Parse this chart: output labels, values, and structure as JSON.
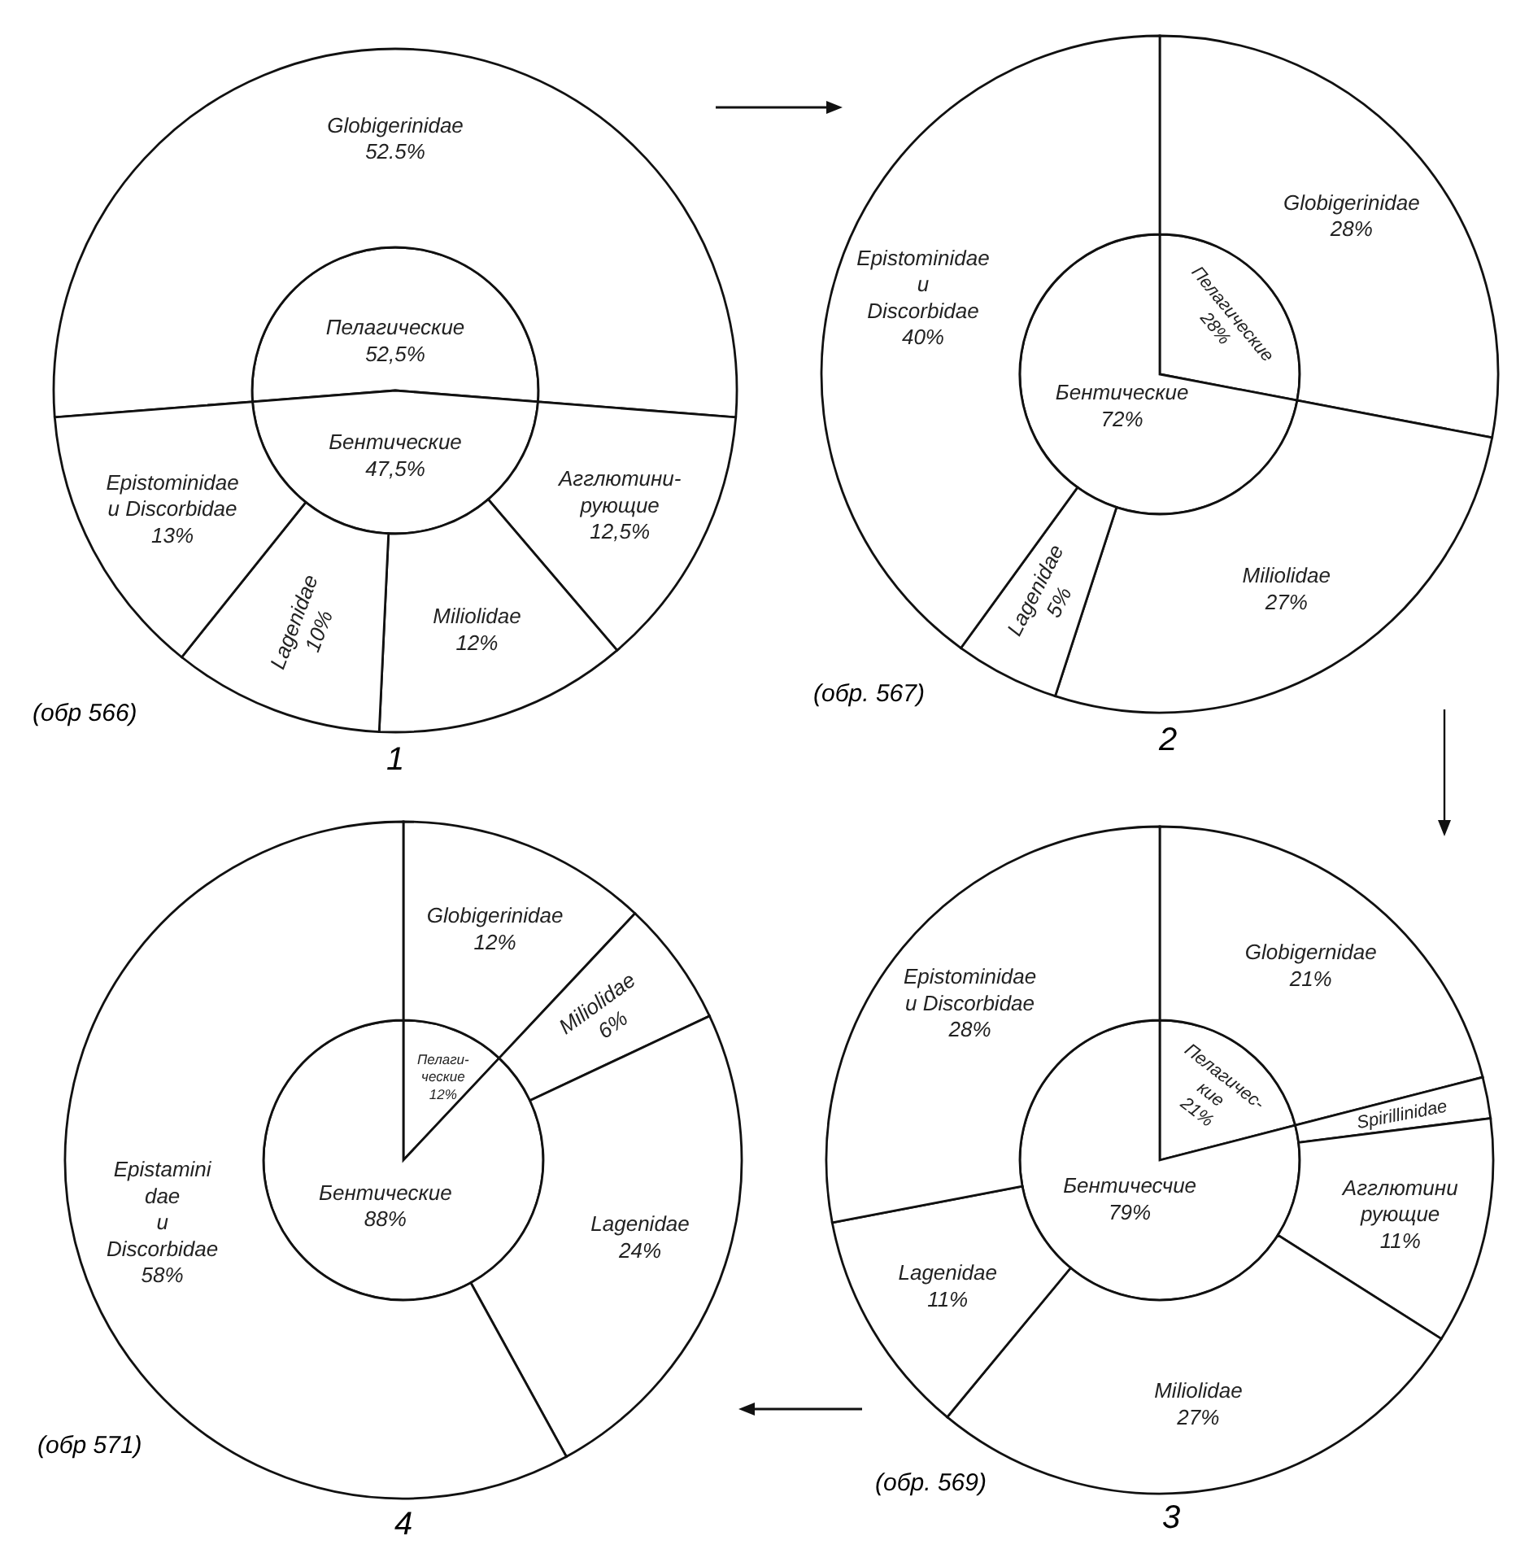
{
  "chart_data": [
    {
      "type": "pie",
      "categories": [
        "Пелагические",
        "Бентические"
      ],
      "values": [
        52.5,
        47.5
      ],
      "value_labels": [
        "52,5%",
        "47,5%"
      ],
      "colors": [
        "#ffffff",
        "#ffffff"
      ]
    },
    {
      "type": "donut",
      "title": "1",
      "subtitle": "(обр 566)",
      "categories": [
        "Globigerinidae",
        "Агглютини-\nрующие",
        "Miliolidae",
        "Lagenidae",
        "Epistominidae\nи Discorbidae"
      ],
      "values": [
        52.5,
        12.5,
        12,
        10,
        13
      ],
      "value_labels": [
        "52.5%",
        "12,5%",
        "12%",
        "10%",
        "13%"
      ],
      "colors": [
        "#ffffff",
        "#ffffff",
        "#ffffff",
        "#ffffff",
        "#ffffff"
      ]
    },
    {
      "type": "pie",
      "categories": [
        "Пелагические",
        "Бентические"
      ],
      "values": [
        28,
        72
      ],
      "value_labels": [
        "28%",
        "72%"
      ],
      "colors": [
        "#ffffff",
        "#ffffff"
      ]
    },
    {
      "type": "donut",
      "title": "2",
      "subtitle": "(обр. 567)",
      "categories": [
        "Globigerinidae",
        "Miliolidae",
        "Lagenidae",
        "Epistominidae\nи\nDiscorbidae"
      ],
      "values": [
        28,
        27,
        5,
        40
      ],
      "value_labels": [
        "28%",
        "27%",
        "5%",
        "40%"
      ],
      "colors": [
        "#ffffff",
        "#ffffff",
        "#ffffff",
        "#ffffff"
      ]
    },
    {
      "type": "pie",
      "categories": [
        "Пелаги-\nческие",
        "Бентические"
      ],
      "values": [
        12,
        88
      ],
      "value_labels": [
        "12%",
        "88%"
      ],
      "colors": [
        "#ffffff",
        "#ffffff"
      ]
    },
    {
      "type": "donut",
      "title": "4",
      "subtitle": "(обр 571)",
      "categories": [
        "Globigerinidae",
        "Miliolidae",
        "Lagenidae",
        "Epistamini\ndae\nи\nDiscorbidae"
      ],
      "values": [
        12,
        6,
        24,
        58
      ],
      "value_labels": [
        "12%",
        "6%",
        "24%",
        "58%"
      ],
      "colors": [
        "#ffffff",
        "#ffffff",
        "#ffffff",
        "#ffffff"
      ]
    },
    {
      "type": "pie",
      "categories": [
        "Пелагичес-\nкие",
        "Бентичесчие"
      ],
      "values": [
        21,
        79
      ],
      "value_labels": [
        "21%",
        "79%"
      ],
      "colors": [
        "#ffffff",
        "#ffffff"
      ]
    },
    {
      "type": "donut",
      "title": "3",
      "subtitle": "(обр. 569)",
      "categories": [
        "Globigernidae",
        "Spirillinidae",
        "Агглютини\nрующие",
        "Miliolidae",
        "Lagenidae",
        "Epistominidae\nи Discorbidae"
      ],
      "values": [
        21,
        2,
        11,
        27,
        11,
        28
      ],
      "value_labels": [
        "21%",
        null,
        "11%",
        "27%",
        "11%",
        "28%"
      ],
      "colors": [
        "#ffffff",
        "#ffffff",
        "#ffffff",
        "#ffffff",
        "#ffffff",
        "#ffffff"
      ]
    }
  ]
}
